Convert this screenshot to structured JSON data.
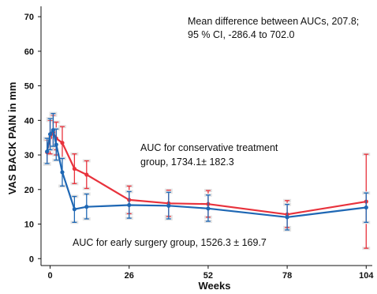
{
  "chart_data": {
    "type": "line",
    "title": "",
    "xlabel": "Weeks",
    "ylabel": "VAS BACK PAIN in mm",
    "xlim": [
      -3,
      106
    ],
    "ylim": [
      -2,
      73
    ],
    "xticks": [
      0,
      26,
      52,
      78,
      104
    ],
    "yticks": [
      0,
      10,
      20,
      30,
      40,
      50,
      60,
      70
    ],
    "grid": false,
    "legend": "none",
    "annotations": {
      "mean_difference_line1": "Mean difference between AUCs, 207.8;",
      "mean_difference_line2": "95 % CI, -286.4 to 702.0",
      "conservative_line1": "AUC for conservative treatment",
      "conservative_line2": "group, 1734.1± 182.3",
      "surgery": "AUC for early surgery group, 1526.3 ± 169.7"
    },
    "series": [
      {
        "color": "#e8323c",
        "x": [
          -1,
          0,
          1,
          2,
          4,
          8,
          12,
          26,
          39,
          52,
          78,
          104
        ],
        "y": [
          30.8,
          35.0,
          36.5,
          34.8,
          33.5,
          26.0,
          24.3,
          17.0,
          16.0,
          15.8,
          12.8,
          16.5
        ],
        "err_low": [
          27.3,
          30.3,
          31.5,
          30.0,
          29.0,
          21.7,
          20.3,
          13.0,
          12.2,
          12.0,
          9.0,
          3.0
        ],
        "err_high": [
          34.4,
          40.0,
          41.5,
          39.5,
          38.2,
          30.3,
          28.3,
          21.0,
          19.8,
          19.7,
          16.8,
          30.2
        ]
      },
      {
        "color": "#1e67b4",
        "x": [
          -1,
          0,
          1,
          2,
          4,
          8,
          12,
          26,
          39,
          52,
          78,
          104
        ],
        "y": [
          31.0,
          36.0,
          37.2,
          33.0,
          25.0,
          14.3,
          15.0,
          15.5,
          15.3,
          14.5,
          12.0,
          14.8
        ],
        "err_low": [
          27.5,
          31.5,
          32.5,
          28.5,
          21.0,
          10.5,
          11.5,
          11.7,
          11.5,
          10.8,
          8.3,
          10.5
        ],
        "err_high": [
          34.8,
          40.5,
          42.0,
          37.5,
          29.0,
          18.0,
          18.7,
          19.4,
          19.2,
          18.4,
          15.7,
          19.0
        ]
      }
    ]
  }
}
